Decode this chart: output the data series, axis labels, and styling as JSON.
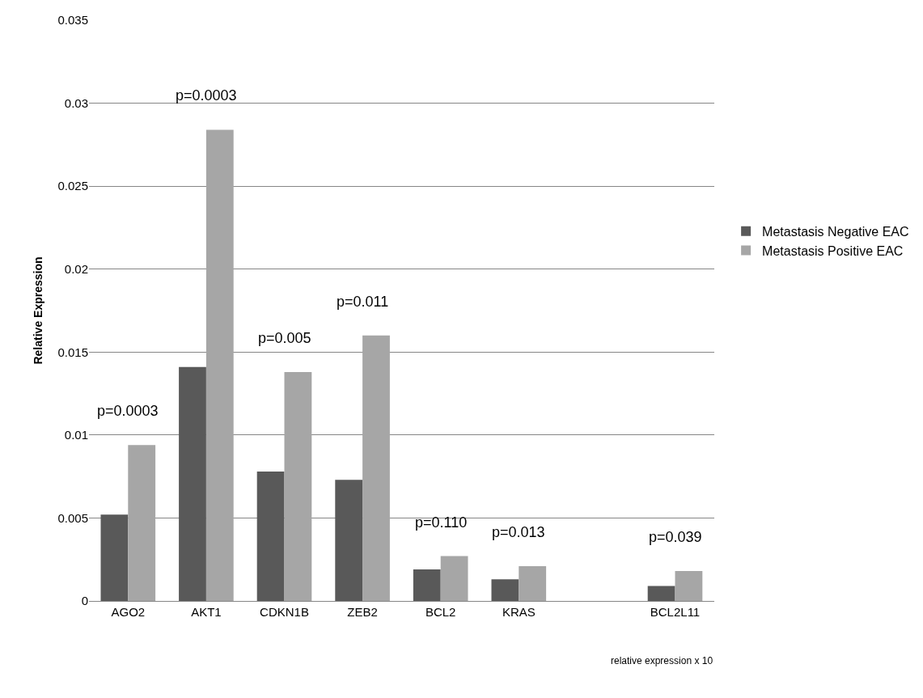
{
  "chart_data": {
    "type": "bar",
    "ylabel": "Relative Expression",
    "categories": [
      "AGO2",
      "AKT1",
      "CDKN1B",
      "ZEB2",
      "BCL2",
      "KRAS",
      null,
      "BCL2L11"
    ],
    "series": [
      {
        "name": "Metastasis Negative EAC",
        "color": "#595959",
        "values": [
          0.0052,
          0.0141,
          0.0078,
          0.0073,
          0.0019,
          0.0013,
          null,
          0.0009
        ]
      },
      {
        "name": "Metastasis Positive EAC",
        "color": "#a6a6a6",
        "values": [
          0.0094,
          0.0284,
          0.0138,
          0.016,
          0.0027,
          0.0021,
          null,
          0.0018
        ]
      }
    ],
    "ylim": [
      0,
      0.035
    ],
    "yticks": [
      0,
      0.005,
      0.01,
      0.015,
      0.02,
      0.025,
      0.03,
      0.035
    ],
    "grid": "y",
    "legend": "right",
    "annotations": [
      "p=0.0003",
      "p=0.0003",
      "p=0.005",
      "p=0.011",
      "p=0.110",
      "p=0.013",
      "p=0.039",
      "relative expression x 10"
    ]
  }
}
